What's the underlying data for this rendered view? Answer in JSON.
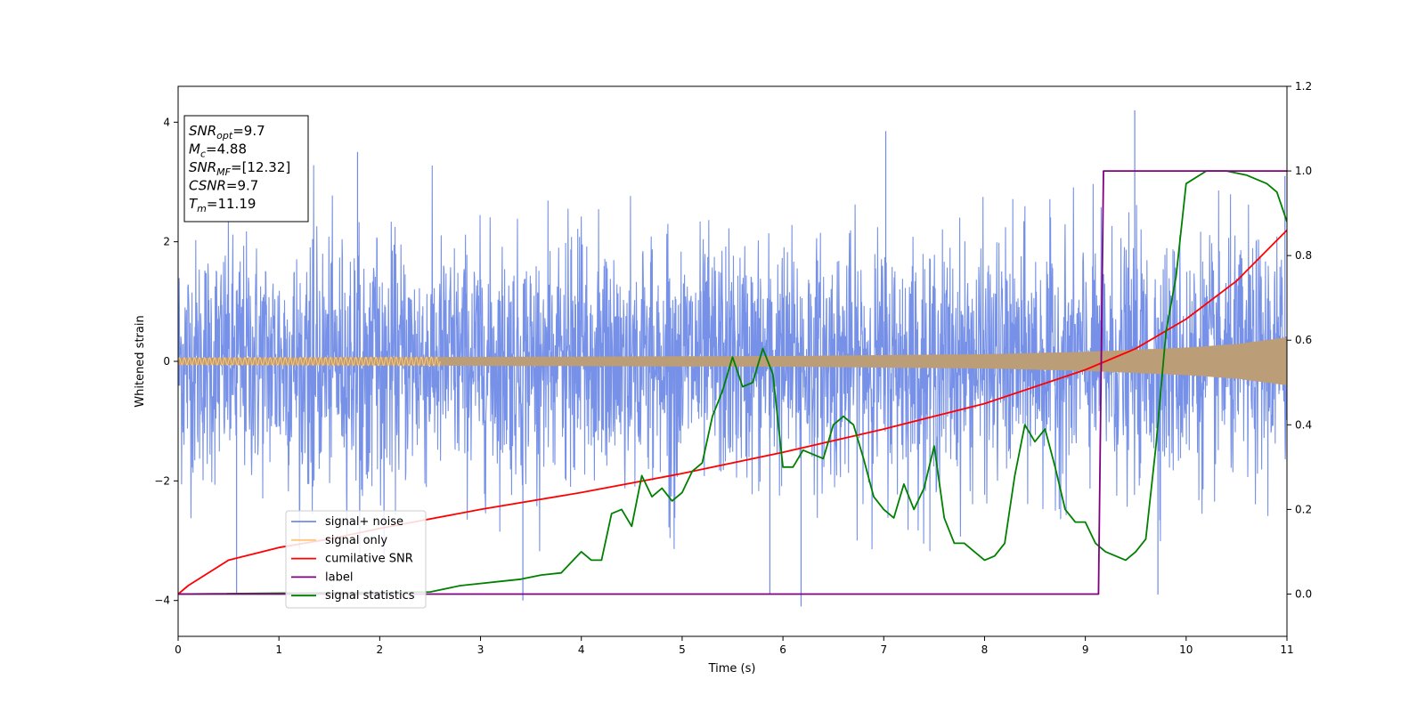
{
  "chart_data": {
    "type": "line",
    "xlabel": "Time (s)",
    "ylabel": "Whitened strain",
    "xlim": [
      0,
      11
    ],
    "ylim_left": [
      -4.6,
      4.6
    ],
    "ylim_right": [
      -0.1,
      1.2
    ],
    "xticks": [
      0,
      1,
      2,
      3,
      4,
      5,
      6,
      7,
      8,
      9,
      10,
      11
    ],
    "yticks_left": [
      -4,
      -2,
      0,
      2,
      4
    ],
    "yticks_right": [
      0.0,
      0.2,
      0.4,
      0.6,
      0.8,
      1.0,
      1.2
    ],
    "grid": false,
    "legend_position": "lower-left",
    "legend": [
      {
        "name": "signal+ noise",
        "color": "#6f8be6"
      },
      {
        "name": "signal only",
        "color": "#ffc77a"
      },
      {
        "name": "cumilative SNR",
        "color": "#ff0000"
      },
      {
        "name": "label",
        "color": "#800080"
      },
      {
        "name": "signal statistics",
        "color": "#008000"
      }
    ],
    "info_box": {
      "lines": [
        {
          "main": "SNR",
          "sub": "opt",
          "rest": "=9.7"
        },
        {
          "main": "M",
          "sub": "c",
          "rest": "=4.88"
        },
        {
          "main": "SNR",
          "sub": "MF",
          "rest": "=[12.32]"
        },
        {
          "main": "CSNR",
          "sub": "",
          "rest": "=9.7"
        },
        {
          "main": "T",
          "sub": "m",
          "rest": "=11.19"
        }
      ]
    },
    "series": [
      {
        "name": "signal+ noise",
        "axis": "left",
        "color": "#6f8be6",
        "render": "noise-band",
        "mean_sd": 1.0,
        "typical_max": 3.3,
        "max_value": 4.2,
        "min_value": -4.1
      },
      {
        "name": "signal only",
        "axis": "left",
        "color": "#ffc77a",
        "render": "envelope",
        "x": [
          0,
          2,
          4,
          6,
          8,
          9,
          10,
          10.5,
          11
        ],
        "amplitude": [
          0.06,
          0.07,
          0.08,
          0.09,
          0.12,
          0.16,
          0.23,
          0.29,
          0.4
        ]
      },
      {
        "name": "cumilative SNR",
        "axis": "right",
        "color": "#ff0000",
        "x": [
          0,
          0.1,
          0.5,
          1,
          1.5,
          2,
          3,
          4,
          5,
          6,
          7,
          8,
          9,
          9.5,
          10,
          10.5,
          11
        ],
        "y": [
          0.0,
          0.02,
          0.08,
          0.11,
          0.13,
          0.155,
          0.2,
          0.24,
          0.285,
          0.335,
          0.39,
          0.45,
          0.53,
          0.58,
          0.65,
          0.74,
          0.86
        ]
      },
      {
        "name": "label",
        "axis": "right",
        "color": "#800080",
        "x": [
          0,
          9.13,
          9.18,
          11
        ],
        "y": [
          0.0,
          0.0,
          1.0,
          1.0
        ]
      },
      {
        "name": "signal statistics",
        "axis": "right",
        "color": "#008000",
        "x": [
          0,
          2.5,
          2.8,
          3.0,
          3.2,
          3.4,
          3.6,
          3.8,
          4.0,
          4.1,
          4.2,
          4.3,
          4.4,
          4.5,
          4.6,
          4.7,
          4.8,
          4.9,
          5.0,
          5.1,
          5.2,
          5.3,
          5.4,
          5.5,
          5.6,
          5.7,
          5.8,
          5.9,
          6.0,
          6.1,
          6.2,
          6.3,
          6.4,
          6.5,
          6.6,
          6.7,
          6.8,
          6.9,
          7.0,
          7.1,
          7.2,
          7.3,
          7.4,
          7.5,
          7.6,
          7.7,
          7.8,
          7.9,
          8.0,
          8.1,
          8.2,
          8.3,
          8.4,
          8.5,
          8.6,
          8.7,
          8.8,
          8.9,
          9.0,
          9.1,
          9.2,
          9.3,
          9.4,
          9.5,
          9.6,
          9.7,
          9.8,
          9.9,
          10.0,
          10.2,
          10.4,
          10.6,
          10.8,
          10.9,
          11.0
        ],
        "y": [
          0.0,
          0.005,
          0.02,
          0.025,
          0.03,
          0.035,
          0.045,
          0.05,
          0.1,
          0.08,
          0.08,
          0.19,
          0.2,
          0.16,
          0.28,
          0.23,
          0.25,
          0.22,
          0.24,
          0.29,
          0.31,
          0.42,
          0.48,
          0.56,
          0.49,
          0.5,
          0.58,
          0.52,
          0.3,
          0.3,
          0.34,
          0.33,
          0.32,
          0.4,
          0.42,
          0.4,
          0.32,
          0.23,
          0.2,
          0.18,
          0.26,
          0.2,
          0.25,
          0.35,
          0.18,
          0.12,
          0.12,
          0.1,
          0.08,
          0.09,
          0.12,
          0.28,
          0.4,
          0.36,
          0.39,
          0.3,
          0.2,
          0.17,
          0.17,
          0.12,
          0.1,
          0.09,
          0.08,
          0.1,
          0.13,
          0.35,
          0.62,
          0.75,
          0.97,
          1.0,
          1.0,
          0.99,
          0.97,
          0.95,
          0.88
        ]
      }
    ]
  }
}
